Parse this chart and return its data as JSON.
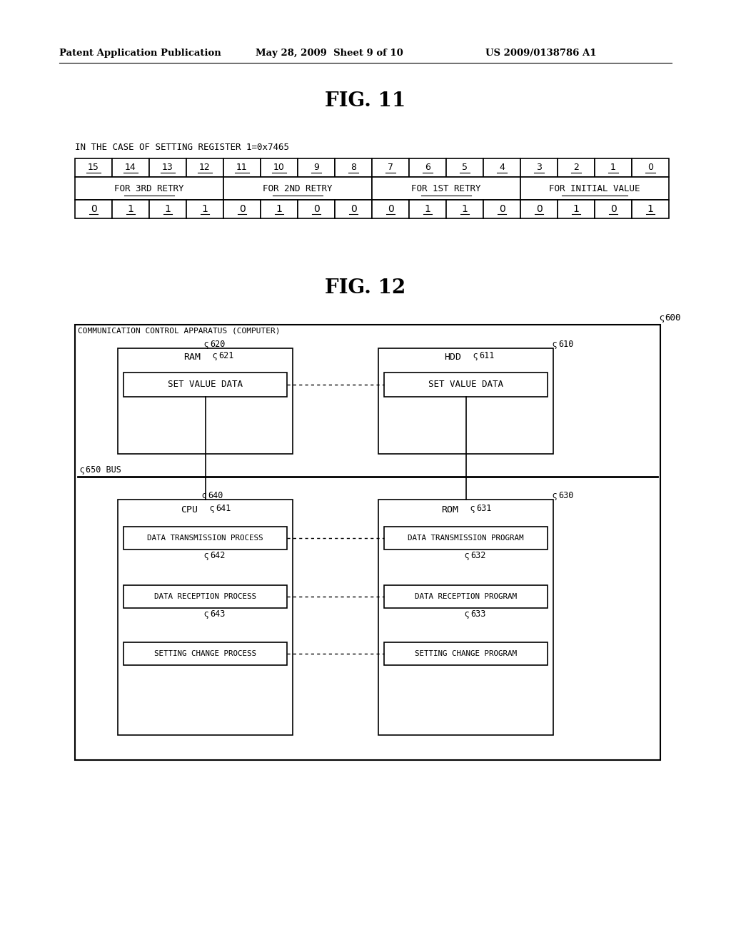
{
  "bg_color": "#ffffff",
  "header_left": "Patent Application Publication",
  "header_mid": "May 28, 2009  Sheet 9 of 10",
  "header_right": "US 2009/0138786 A1",
  "fig11_title": "FIG. 11",
  "fig11_label": "IN THE CASE OF SETTING REGISTER 1=0x7465",
  "bit_numbers": [
    "15",
    "14",
    "13",
    "12",
    "11",
    "10",
    "9",
    "8",
    "7",
    "6",
    "5",
    "4",
    "3",
    "2",
    "1",
    "0"
  ],
  "retry_labels": [
    "FOR 3RD RETRY",
    "FOR 2ND RETRY",
    "FOR 1ST RETRY",
    "FOR INITIAL VALUE"
  ],
  "bit_values": [
    "0",
    "1",
    "1",
    "1",
    "0",
    "1",
    "0",
    "0",
    "0",
    "1",
    "1",
    "0",
    "0",
    "1",
    "0",
    "1"
  ],
  "fig12_title": "FIG. 12",
  "label_600": "600",
  "label_610": "610",
  "label_620": "620",
  "label_621": "621",
  "label_611": "611",
  "label_630": "630",
  "label_631": "631",
  "label_640": "640",
  "label_641": "641",
  "label_642": "642",
  "label_643": "643",
  "label_632": "632",
  "label_633": "633",
  "label_650": "650 BUS",
  "outer_label": "COMMUNICATION CONTROL APPARATUS (COMPUTER)",
  "ram_title": "RAM",
  "hdd_title": "HDD",
  "cpu_title": "CPU",
  "rom_title": "ROM",
  "set_value_data": "SET VALUE DATA",
  "data_tx_process": "DATA TRANSMISSION PROCESS",
  "data_rx_process": "DATA RECEPTION PROCESS",
  "setting_change_process": "SETTING CHANGE PROCESS",
  "data_tx_program": "DATA TRANSMISSION PROGRAM",
  "data_rx_program": "DATA RECEPTION PROGRAM",
  "setting_change_program": "SETTING CHANGE PROGRAM"
}
